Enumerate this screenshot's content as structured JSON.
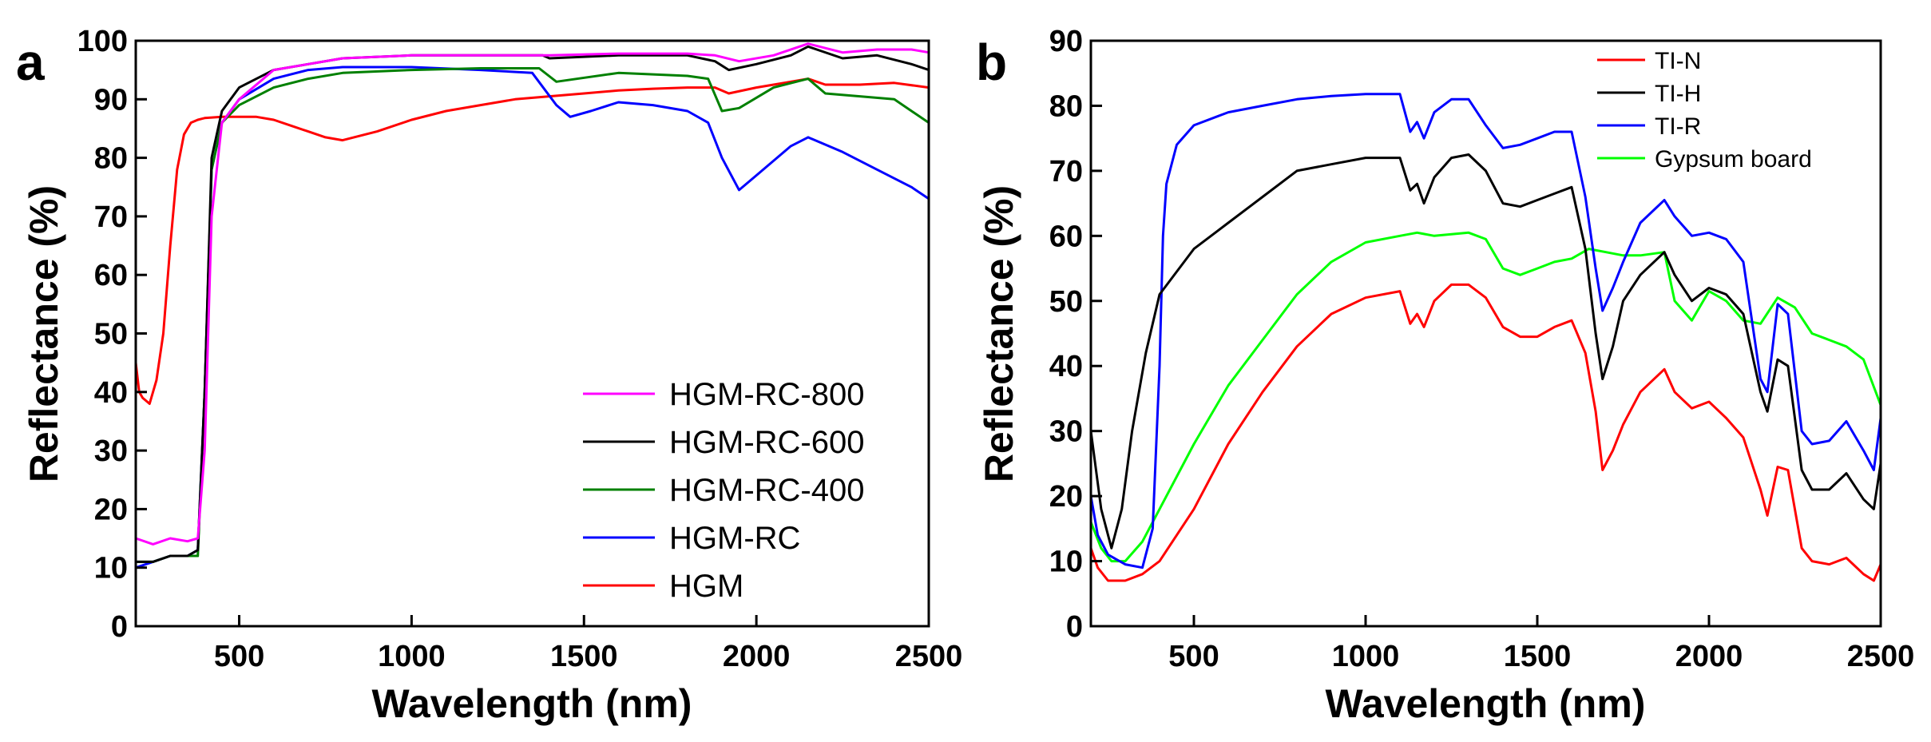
{
  "chart_data": [
    {
      "type": "line",
      "panel_label": "a",
      "xlabel": "Wavelength (nm)",
      "ylabel": "Reflectance (%)",
      "xlim": [
        200,
        2500
      ],
      "ylim": [
        0,
        100
      ],
      "xticks": [
        500,
        1000,
        1500,
        2000,
        2500
      ],
      "yticks": [
        0,
        10,
        20,
        30,
        40,
        50,
        60,
        70,
        80,
        90,
        100
      ],
      "legend_position": "bottom-right",
      "legend_order": [
        "HGM-RC-800",
        "HGM-RC-600",
        "HGM-RC-400",
        "HGM-RC",
        "HGM"
      ],
      "series": [
        {
          "name": "HGM-RC-800",
          "color": "#ff00ff",
          "x": [
            200,
            250,
            300,
            350,
            380,
            400,
            420,
            450,
            500,
            600,
            700,
            800,
            1000,
            1200,
            1400,
            1600,
            1800,
            1880,
            1950,
            2050,
            2150,
            2250,
            2350,
            2450,
            2500
          ],
          "y": [
            15,
            14,
            15,
            14.5,
            15,
            30,
            70,
            86,
            90,
            95,
            96,
            97,
            97.5,
            97.5,
            97.5,
            97.8,
            97.8,
            97.5,
            96.5,
            97.5,
            99.5,
            98,
            98.5,
            98.5,
            98
          ]
        },
        {
          "name": "HGM-RC-600",
          "color": "#000000",
          "x": [
            200,
            250,
            300,
            350,
            380,
            400,
            420,
            450,
            500,
            600,
            700,
            800,
            1000,
            1200,
            1380,
            1400,
            1600,
            1800,
            1880,
            1920,
            2000,
            2100,
            2150,
            2250,
            2350,
            2450,
            2500
          ],
          "y": [
            11,
            11,
            12,
            12,
            13,
            40,
            80,
            88,
            92,
            95,
            96,
            97,
            97.5,
            97.5,
            97.5,
            97,
            97.5,
            97.5,
            96.5,
            95,
            96,
            97.5,
            99,
            97,
            97.5,
            96,
            95
          ]
        },
        {
          "name": "HGM-RC-400",
          "color": "#008000",
          "x": [
            200,
            250,
            300,
            350,
            380,
            400,
            420,
            450,
            500,
            600,
            700,
            800,
            1000,
            1200,
            1370,
            1420,
            1600,
            1800,
            1860,
            1900,
            1950,
            2050,
            2150,
            2200,
            2300,
            2400,
            2450,
            2500
          ],
          "y": [
            11,
            11,
            12,
            12,
            12,
            40,
            78,
            86,
            89,
            92,
            93.5,
            94.5,
            95,
            95.3,
            95.3,
            93,
            94.5,
            94,
            93.5,
            88,
            88.5,
            92,
            93.5,
            91,
            90.5,
            90,
            88,
            86
          ]
        },
        {
          "name": "HGM-RC",
          "color": "#0000ff",
          "x": [
            200,
            250,
            300,
            350,
            380,
            400,
            420,
            450,
            500,
            600,
            700,
            800,
            1000,
            1200,
            1350,
            1420,
            1460,
            1520,
            1600,
            1700,
            1800,
            1860,
            1900,
            1950,
            2000,
            2100,
            2150,
            2250,
            2350,
            2450,
            2500
          ],
          "y": [
            10,
            11,
            12,
            12,
            13,
            40,
            78,
            86,
            90,
            93.5,
            95,
            95.5,
            95.5,
            95,
            94.5,
            89,
            87,
            88,
            89.5,
            89,
            88,
            86,
            80,
            74.5,
            77,
            82,
            83.5,
            81,
            78,
            75,
            73
          ]
        },
        {
          "name": "HGM",
          "color": "#ff0000",
          "x": [
            200,
            210,
            220,
            240,
            260,
            280,
            300,
            320,
            340,
            360,
            380,
            400,
            450,
            500,
            550,
            600,
            650,
            700,
            750,
            800,
            900,
            1000,
            1100,
            1200,
            1300,
            1400,
            1500,
            1600,
            1700,
            1800,
            1880,
            1920,
            2000,
            2050,
            2100,
            2150,
            2200,
            2300,
            2400,
            2500
          ],
          "y": [
            45,
            40,
            39,
            38,
            42,
            50,
            65,
            78,
            84,
            86,
            86.5,
            86.8,
            87,
            87,
            87,
            86.5,
            85.5,
            84.5,
            83.5,
            83,
            84.5,
            86.5,
            88,
            89,
            90,
            90.5,
            91,
            91.5,
            91.8,
            92,
            92,
            91,
            92,
            92.5,
            93,
            93.5,
            92.5,
            92.5,
            92.8,
            92
          ]
        }
      ]
    },
    {
      "type": "line",
      "panel_label": "b",
      "xlabel": "Wavelength (nm)",
      "ylabel": "Reflectance (%)",
      "xlim": [
        200,
        2500
      ],
      "ylim": [
        0,
        90
      ],
      "xticks": [
        500,
        1000,
        1500,
        2000,
        2500
      ],
      "yticks": [
        0,
        10,
        20,
        30,
        40,
        50,
        60,
        70,
        80,
        90
      ],
      "legend_position": "top-right",
      "legend_order": [
        "TI-N",
        "TI-H",
        "TI-R",
        "Gypsum board"
      ],
      "series": [
        {
          "name": "TI-N",
          "color": "#ff0000",
          "x": [
            200,
            220,
            250,
            280,
            300,
            350,
            400,
            500,
            600,
            700,
            800,
            900,
            1000,
            1100,
            1130,
            1150,
            1170,
            1200,
            1250,
            1300,
            1350,
            1400,
            1450,
            1500,
            1550,
            1600,
            1640,
            1670,
            1690,
            1720,
            1750,
            1800,
            1870,
            1900,
            1950,
            2000,
            2050,
            2100,
            2150,
            2170,
            2200,
            2230,
            2270,
            2300,
            2350,
            2400,
            2450,
            2480,
            2500
          ],
          "y": [
            12,
            9,
            7,
            7,
            7,
            8,
            10,
            18,
            28,
            36,
            43,
            48,
            50.5,
            51.5,
            46.5,
            48,
            46,
            50,
            52.5,
            52.5,
            50.5,
            46,
            44.5,
            44.5,
            46,
            47,
            42,
            33,
            24,
            27,
            31,
            36,
            39.5,
            36,
            33.5,
            34.5,
            32,
            29,
            21,
            17,
            24.5,
            24,
            12,
            10,
            9.5,
            10.5,
            8,
            7,
            9.5
          ]
        },
        {
          "name": "TI-H",
          "color": "#000000",
          "x": [
            200,
            230,
            260,
            290,
            320,
            360,
            400,
            500,
            600,
            700,
            800,
            900,
            1000,
            1100,
            1130,
            1150,
            1170,
            1200,
            1250,
            1300,
            1350,
            1400,
            1450,
            1500,
            1550,
            1600,
            1640,
            1670,
            1690,
            1720,
            1750,
            1800,
            1870,
            1900,
            1950,
            2000,
            2050,
            2100,
            2150,
            2170,
            2200,
            2230,
            2270,
            2300,
            2350,
            2400,
            2450,
            2480,
            2500
          ],
          "y": [
            30,
            18,
            12,
            18,
            30,
            42,
            51,
            58,
            62,
            66,
            70,
            71,
            72,
            72,
            67,
            68,
            65,
            69,
            72,
            72.5,
            70,
            65,
            64.5,
            65.5,
            66.5,
            67.5,
            58,
            45,
            38,
            43,
            50,
            54,
            57.5,
            54,
            50,
            52,
            51,
            48,
            36,
            33,
            41,
            40,
            24,
            21,
            21,
            23.5,
            19.5,
            18,
            25
          ]
        },
        {
          "name": "TI-R",
          "color": "#0000ff",
          "x": [
            200,
            220,
            250,
            300,
            350,
            380,
            400,
            410,
            420,
            450,
            500,
            600,
            700,
            800,
            900,
            1000,
            1100,
            1130,
            1150,
            1170,
            1200,
            1250,
            1300,
            1350,
            1400,
            1450,
            1500,
            1550,
            1600,
            1640,
            1670,
            1690,
            1720,
            1750,
            1800,
            1870,
            1900,
            1950,
            2000,
            2050,
            2100,
            2150,
            2170,
            2200,
            2230,
            2270,
            2300,
            2350,
            2400,
            2450,
            2480,
            2500
          ],
          "y": [
            20,
            14,
            11,
            9.5,
            9,
            15,
            40,
            60,
            68,
            74,
            77,
            79,
            80,
            81,
            81.5,
            81.8,
            81.8,
            76,
            77.5,
            75,
            79,
            81,
            81,
            77,
            73.5,
            74,
            75,
            76,
            76,
            66,
            55,
            48.5,
            52,
            56,
            62,
            65.5,
            63,
            60,
            60.5,
            59.5,
            56,
            38,
            36,
            49.5,
            48,
            30,
            28,
            28.5,
            31.5,
            27,
            24,
            32
          ]
        },
        {
          "name": "Gypsum board",
          "color": "#00ff00",
          "x": [
            200,
            230,
            260,
            300,
            350,
            400,
            500,
            600,
            700,
            800,
            900,
            1000,
            1100,
            1150,
            1200,
            1300,
            1350,
            1400,
            1450,
            1500,
            1550,
            1600,
            1650,
            1700,
            1750,
            1800,
            1870,
            1900,
            1950,
            2000,
            2050,
            2100,
            2150,
            2200,
            2250,
            2300,
            2350,
            2400,
            2450,
            2500
          ],
          "y": [
            16,
            12,
            10,
            10,
            13,
            18,
            28,
            37,
            44,
            51,
            56,
            59,
            60,
            60.5,
            60,
            60.5,
            59.5,
            55,
            54,
            55,
            56,
            56.5,
            58,
            57.5,
            57,
            57,
            57.5,
            50,
            47,
            51.5,
            50,
            47,
            46.5,
            50.5,
            49,
            45,
            44,
            43,
            41,
            34
          ]
        }
      ]
    }
  ]
}
